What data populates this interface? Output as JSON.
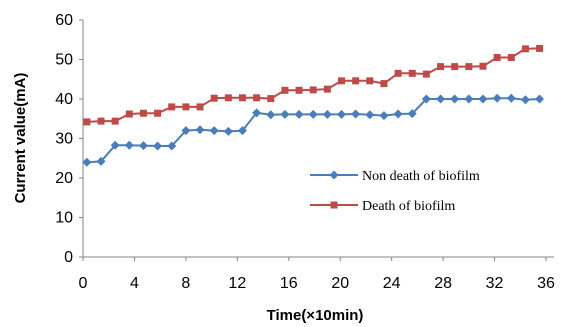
{
  "chart_data": {
    "type": "line",
    "title": "",
    "xlabel": "Time(×10min)",
    "ylabel": "Current value(mA)",
    "xlim": [
      0,
      36
    ],
    "ylim": [
      0,
      60
    ],
    "xticks": [
      "0",
      "4",
      "8",
      "12",
      "16",
      "20",
      "24",
      "28",
      "32",
      "36"
    ],
    "yticks": [
      "0",
      "10",
      "20",
      "30",
      "40",
      "50",
      "60"
    ],
    "grid": false,
    "legend_position": "right",
    "series": [
      {
        "name": "Non death of biofilm",
        "color": "#4a7ebb",
        "marker": "diamond",
        "x": [
          0.3,
          1.4,
          2.5,
          3.6,
          4.7,
          5.8,
          6.9,
          8.0,
          9.1,
          10.2,
          11.3,
          12.4,
          13.5,
          14.6,
          15.7,
          16.8,
          17.9,
          19.0,
          20.1,
          21.2,
          22.3,
          23.4,
          24.5,
          25.6,
          26.7,
          27.8,
          28.9,
          30.0,
          31.1,
          32.2,
          33.3,
          34.4,
          35.5
        ],
        "y": [
          24,
          24.2,
          28.3,
          28.3,
          28.2,
          28.1,
          28.1,
          32,
          32.2,
          32,
          31.8,
          32,
          36.5,
          36,
          36.1,
          36.1,
          36.1,
          36.1,
          36.1,
          36.2,
          36,
          35.8,
          36.2,
          36.3,
          40,
          40,
          40,
          40,
          40,
          40.2,
          40.2,
          39.8,
          40
        ]
      },
      {
        "name": "Death of biofilm",
        "color": "#be4b48",
        "marker": "square",
        "x": [
          0.3,
          1.4,
          2.5,
          3.6,
          4.7,
          5.8,
          6.9,
          8.0,
          9.1,
          10.2,
          11.3,
          12.4,
          13.5,
          14.6,
          15.7,
          16.8,
          17.9,
          19.0,
          20.1,
          21.2,
          22.3,
          23.4,
          24.5,
          25.6,
          26.7,
          27.8,
          28.9,
          30.0,
          31.1,
          32.2,
          33.3,
          34.4,
          35.5
        ],
        "y": [
          34.2,
          34.4,
          34.4,
          36.2,
          36.4,
          36.4,
          38,
          38,
          38,
          40.2,
          40.3,
          40.3,
          40.3,
          40.1,
          42.2,
          42.2,
          42.3,
          42.5,
          44.6,
          44.6,
          44.6,
          43.9,
          46.5,
          46.5,
          46.3,
          48.2,
          48.2,
          48.2,
          48.3,
          50.5,
          50.5,
          52.7,
          52.8
        ]
      }
    ]
  }
}
